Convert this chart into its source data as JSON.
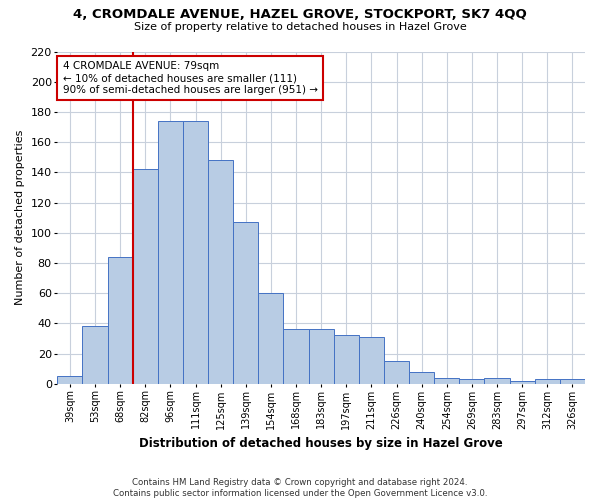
{
  "title": "4, CROMDALE AVENUE, HAZEL GROVE, STOCKPORT, SK7 4QQ",
  "subtitle": "Size of property relative to detached houses in Hazel Grove",
  "xlabel": "Distribution of detached houses by size in Hazel Grove",
  "ylabel": "Number of detached properties",
  "footer_line1": "Contains HM Land Registry data © Crown copyright and database right 2024.",
  "footer_line2": "Contains public sector information licensed under the Open Government Licence v3.0.",
  "categories": [
    "39sqm",
    "53sqm",
    "68sqm",
    "82sqm",
    "96sqm",
    "111sqm",
    "125sqm",
    "139sqm",
    "154sqm",
    "168sqm",
    "183sqm",
    "197sqm",
    "211sqm",
    "226sqm",
    "240sqm",
    "254sqm",
    "269sqm",
    "283sqm",
    "297sqm",
    "312sqm",
    "326sqm"
  ],
  "values": [
    5,
    38,
    84,
    142,
    174,
    174,
    148,
    107,
    60,
    36,
    36,
    32,
    31,
    15,
    8,
    4,
    3,
    4,
    2,
    3,
    3
  ],
  "bar_color": "#b8cce4",
  "bar_edge_color": "#4472c4",
  "background_color": "#ffffff",
  "grid_color": "#c8d0dc",
  "annotation_line1": "4 CROMDALE AVENUE: 79sqm",
  "annotation_line2": "← 10% of detached houses are smaller (111)",
  "annotation_line3": "90% of semi-detached houses are larger (951) →",
  "vline_color": "#cc0000",
  "ylim": [
    0,
    220
  ],
  "yticks": [
    0,
    20,
    40,
    60,
    80,
    100,
    120,
    140,
    160,
    180,
    200,
    220
  ],
  "annotation_box_color": "#ffffff",
  "annotation_box_edge": "#cc0000"
}
